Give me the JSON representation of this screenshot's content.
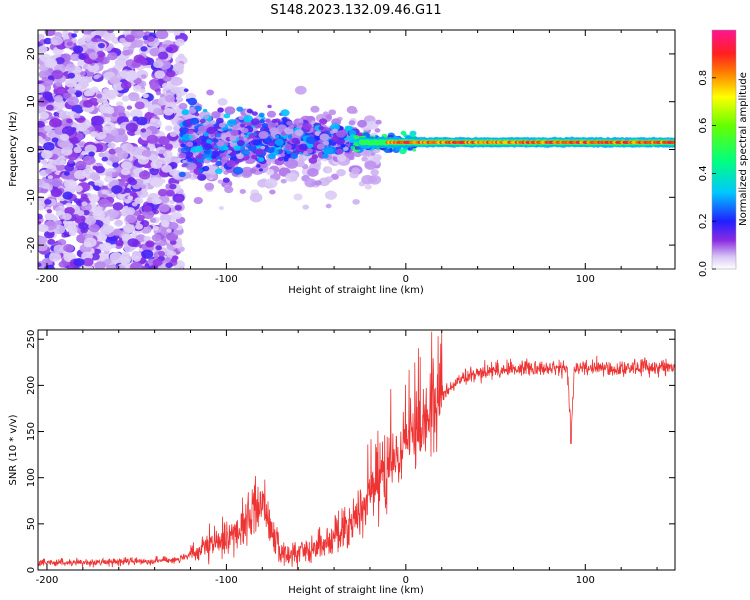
{
  "title": "S148.2023.132.09.46.G11",
  "chart_data": [
    {
      "type": "heatmap",
      "xlabel": "Height of straight line (km)",
      "ylabel": "Frequency (Hz)",
      "xlim": [
        -205,
        150
      ],
      "ylim": [
        -25,
        25
      ],
      "xticks": [
        -200,
        -100,
        0,
        100
      ],
      "yticks": [
        -20,
        -10,
        0,
        10,
        20
      ],
      "colorbar": {
        "label": "Normalized spectral amplitude",
        "range": [
          0,
          1
        ],
        "ticks": [
          0.0,
          0.2,
          0.4,
          0.6,
          0.8
        ]
      },
      "features": {
        "noise_region_x": [
          -205,
          -125
        ],
        "scatter_region_x": [
          -125,
          -25
        ],
        "carrier_line_frequency": 1.5,
        "carrier_line_x": [
          -25,
          150
        ]
      }
    },
    {
      "type": "line",
      "xlabel": "Height of straight line (km)",
      "ylabel": "SNR (10 * v/v)",
      "xlim": [
        -205,
        150
      ],
      "ylim": [
        0,
        260
      ],
      "xticks": [
        -200,
        -100,
        0,
        100
      ],
      "yticks": [
        0,
        50,
        100,
        150,
        200,
        250
      ],
      "color": "#ee3333",
      "series": [
        {
          "name": "",
          "x": [
            -205,
            -180,
            -160,
            -140,
            -125,
            -115,
            -105,
            -95,
            -88,
            -82,
            -78,
            -73,
            -68,
            -60,
            -50,
            -40,
            -30,
            -20,
            -15,
            -10,
            -5,
            0,
            10,
            20,
            30,
            40,
            50,
            60,
            70,
            80,
            90,
            92,
            94,
            100,
            110,
            120,
            130,
            140,
            150
          ],
          "y": [
            8,
            8,
            9,
            10,
            12,
            20,
            30,
            40,
            55,
            75,
            70,
            30,
            15,
            20,
            25,
            35,
            50,
            80,
            100,
            110,
            120,
            135,
            155,
            190,
            205,
            213,
            217,
            218,
            220,
            218,
            218,
            150,
            218,
            220,
            218,
            218,
            220,
            220,
            220
          ]
        }
      ]
    }
  ]
}
